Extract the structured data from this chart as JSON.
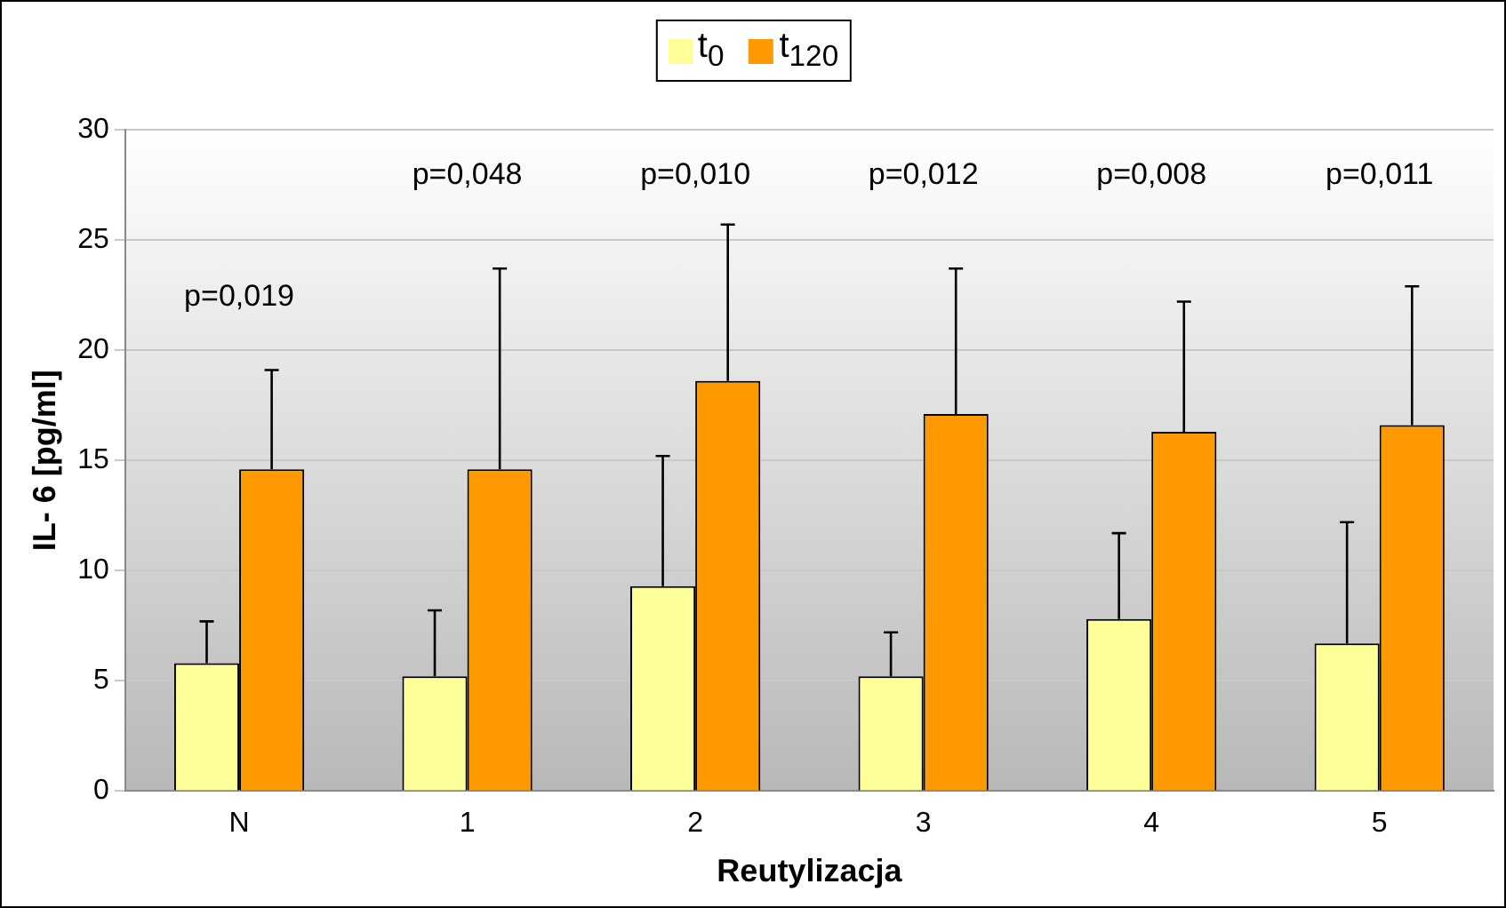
{
  "chart_data": {
    "type": "bar",
    "xlabel": "Reutylizacja",
    "ylabel": "IL- 6 [pg/ml]",
    "categories": [
      "N",
      "1",
      "2",
      "3",
      "4",
      "5"
    ],
    "series": [
      {
        "name": "t$_{0}$",
        "color": "#ffff99",
        "values": [
          5.8,
          5.2,
          9.3,
          5.2,
          7.8,
          6.7
        ],
        "errors": [
          [
            5.8,
            7.7
          ],
          [
            5.2,
            8.2
          ],
          [
            9.3,
            15.2
          ],
          [
            5.2,
            7.2
          ],
          [
            7.8,
            11.7
          ],
          [
            6.7,
            12.2
          ]
        ]
      },
      {
        "name": "t$_{120}$",
        "color": "#ff9900",
        "values": [
          14.6,
          14.6,
          18.6,
          17.1,
          16.3,
          16.6
        ],
        "errors": [
          [
            14.6,
            19.1
          ],
          [
            14.6,
            23.7
          ],
          [
            18.6,
            25.7
          ],
          [
            17.1,
            23.7
          ],
          [
            16.3,
            22.2
          ],
          [
            16.6,
            22.9
          ]
        ]
      }
    ],
    "ylim": [
      0,
      30
    ],
    "yticks": [
      0,
      5,
      10,
      15,
      20,
      25,
      30
    ],
    "grid": "y",
    "legend": "top",
    "annotations": [
      "p=0,019",
      "p=0,048",
      "p=0,010",
      "p=0,012",
      "p=0,008",
      "p=0,011"
    ]
  }
}
